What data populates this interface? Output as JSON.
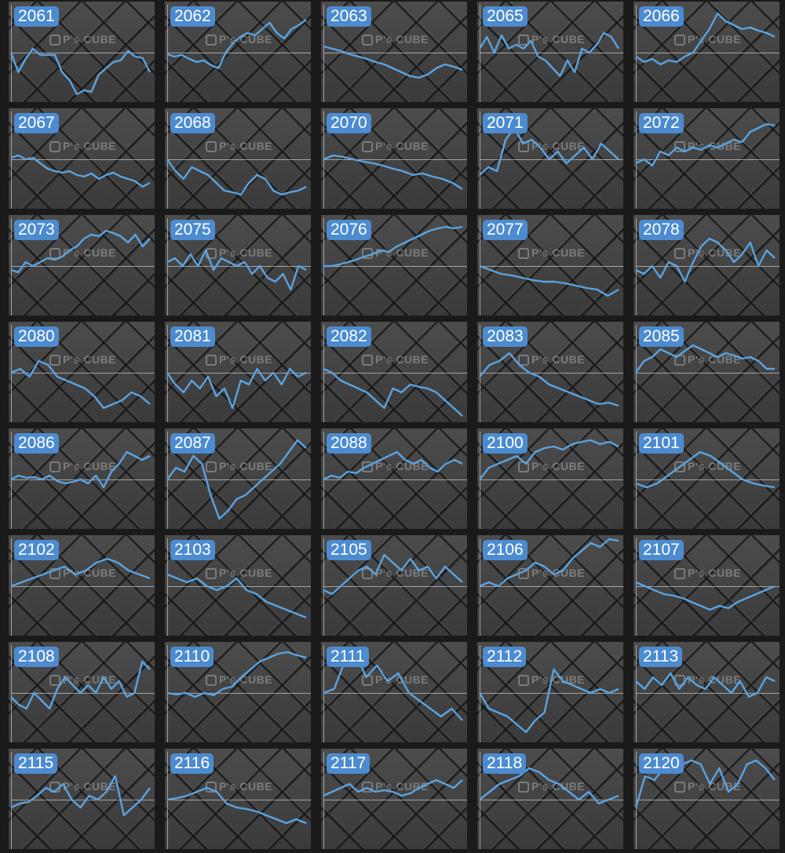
{
  "watermark": "P's CUBE",
  "colors": {
    "line": "#5ba3e0",
    "badge": "#4c8bd0",
    "background": "#1a1a1a"
  },
  "chart_data": [
    {
      "type": "line",
      "title": "2061",
      "values": [
        0,
        -25,
        -8,
        5,
        -3,
        -3,
        -3,
        -25,
        -35,
        -53,
        -48,
        -50,
        -28,
        -20,
        -12,
        -10,
        2,
        -5,
        -7,
        -25
      ]
    },
    {
      "type": "line",
      "title": "2062",
      "values": [
        -2,
        -5,
        -3,
        -8,
        -12,
        -10,
        -16,
        -20,
        0,
        12,
        20,
        25,
        22,
        30,
        38,
        25,
        18,
        30,
        35,
        42
      ]
    },
    {
      "type": "line",
      "title": "2063",
      "values": [
        8,
        5,
        2,
        -2,
        -5,
        -8,
        -12,
        -15,
        -20,
        -25,
        -30,
        -32,
        -28,
        -20,
        -15,
        -18,
        -22
      ]
    },
    {
      "type": "line",
      "title": "2065",
      "values": [
        5,
        20,
        0,
        22,
        5,
        10,
        5,
        15,
        -5,
        -10,
        -20,
        -30,
        -10,
        -25,
        5,
        0,
        10,
        25,
        20,
        5
      ]
    },
    {
      "type": "line",
      "title": "2066",
      "values": [
        -5,
        -12,
        -8,
        -15,
        -10,
        -12,
        -5,
        0,
        15,
        30,
        50,
        40,
        35,
        30,
        32,
        28,
        25,
        20
      ]
    },
    {
      "type": "line",
      "title": "2067",
      "values": [
        2,
        5,
        0,
        2,
        -5,
        -12,
        -15,
        -17,
        -15,
        -20,
        -22,
        -18,
        -25,
        -20,
        -17,
        -22,
        -25,
        -28,
        -35,
        -30
      ]
    },
    {
      "type": "line",
      "title": "2068",
      "values": [
        0,
        -15,
        -25,
        -10,
        -15,
        -20,
        -30,
        -40,
        -42,
        -45,
        -30,
        -20,
        -25,
        -40,
        -45,
        -42,
        -40,
        -35
      ]
    },
    {
      "type": "line",
      "title": "2070",
      "values": [
        0,
        5,
        3,
        0,
        -3,
        -5,
        -8,
        -12,
        -15,
        -20,
        -18,
        -22,
        -25,
        -30,
        -38
      ]
    },
    {
      "type": "line",
      "title": "2071",
      "values": [
        -20,
        -10,
        -15,
        25,
        40,
        20,
        25,
        15,
        0,
        10,
        -5,
        5,
        15,
        0,
        20,
        10,
        0
      ]
    },
    {
      "type": "line",
      "title": "2072",
      "values": [
        -5,
        0,
        -8,
        10,
        5,
        15,
        10,
        15,
        12,
        18,
        15,
        20,
        25,
        22,
        35,
        40,
        45,
        43
      ]
    },
    {
      "type": "line",
      "title": "2073",
      "values": [
        -5,
        -8,
        5,
        0,
        5,
        10,
        8,
        12,
        20,
        25,
        35,
        40,
        38,
        45,
        42,
        38,
        30,
        40,
        25,
        35
      ]
    },
    {
      "type": "line",
      "title": "2075",
      "values": [
        5,
        10,
        0,
        15,
        0,
        20,
        -5,
        10,
        5,
        0,
        5,
        -10,
        0,
        -15,
        -20,
        -10,
        -30,
        0,
        -5
      ]
    },
    {
      "type": "line",
      "title": "2076",
      "values": [
        0,
        0,
        2,
        5,
        8,
        12,
        15,
        20,
        18,
        25,
        30,
        35,
        40,
        45,
        48,
        50,
        48,
        50
      ]
    },
    {
      "type": "line",
      "title": "2077",
      "values": [
        0,
        -5,
        -10,
        -12,
        -15,
        -18,
        -20,
        -20,
        -22,
        -25,
        -28,
        -30,
        -38,
        -30
      ]
    },
    {
      "type": "line",
      "title": "2078",
      "values": [
        -5,
        -10,
        0,
        -15,
        5,
        0,
        -20,
        5,
        25,
        35,
        30,
        20,
        5,
        15,
        30,
        0,
        20,
        10
      ]
    },
    {
      "type": "line",
      "title": "2080",
      "values": [
        0,
        5,
        -5,
        15,
        10,
        -5,
        -10,
        -15,
        -20,
        -30,
        -45,
        -40,
        -35,
        -25,
        -30,
        -40
      ]
    },
    {
      "type": "line",
      "title": "2081",
      "values": [
        0,
        -15,
        -25,
        -10,
        -20,
        -5,
        -30,
        -20,
        -45,
        -10,
        -15,
        5,
        -10,
        0,
        -15,
        5,
        -5,
        0
      ]
    },
    {
      "type": "line",
      "title": "2082",
      "values": [
        5,
        0,
        -10,
        -15,
        -20,
        -25,
        -35,
        -45,
        -20,
        -25,
        -15,
        -18,
        -20,
        -25,
        -35,
        -45,
        -55
      ]
    },
    {
      "type": "line",
      "title": "2083",
      "values": [
        -5,
        10,
        15,
        25,
        10,
        0,
        -5,
        -15,
        -20,
        -25,
        -30,
        -35,
        -40,
        -38,
        -42
      ]
    },
    {
      "type": "line",
      "title": "2085",
      "values": [
        0,
        15,
        20,
        30,
        25,
        20,
        28,
        35,
        30,
        25,
        20,
        25,
        22,
        18,
        20,
        15,
        5,
        5
      ]
    },
    {
      "type": "line",
      "title": "2086",
      "values": [
        0,
        5,
        2,
        3,
        0,
        5,
        -2,
        -5,
        -3,
        0,
        -5,
        5,
        -10,
        10,
        20,
        35,
        30,
        25,
        30
      ]
    },
    {
      "type": "line",
      "title": "2087",
      "values": [
        0,
        15,
        10,
        30,
        20,
        -20,
        -50,
        -40,
        -25,
        -20,
        -10,
        0,
        10,
        20,
        35,
        50,
        40
      ]
    },
    {
      "type": "line",
      "title": "2088",
      "values": [
        0,
        5,
        2,
        10,
        8,
        15,
        20,
        25,
        30,
        35,
        25,
        20,
        25,
        15,
        10,
        20,
        25,
        20
      ]
    },
    {
      "type": "line",
      "title": "2100",
      "values": [
        0,
        15,
        20,
        25,
        30,
        20,
        35,
        40,
        42,
        38,
        45,
        48,
        50,
        45,
        48,
        42
      ]
    },
    {
      "type": "line",
      "title": "2101",
      "values": [
        -5,
        -10,
        -5,
        5,
        15,
        25,
        35,
        30,
        20,
        10,
        0,
        -5,
        -8,
        -10
      ]
    },
    {
      "type": "line",
      "title": "2102",
      "values": [
        0,
        5,
        10,
        15,
        20,
        25,
        15,
        20,
        30,
        35,
        30,
        20,
        15,
        10
      ]
    },
    {
      "type": "line",
      "title": "2103",
      "values": [
        15,
        10,
        5,
        10,
        0,
        -5,
        0,
        10,
        -5,
        -10,
        -20,
        -25,
        -30,
        -35,
        -40
      ]
    },
    {
      "type": "line",
      "title": "2105",
      "values": [
        -5,
        -10,
        0,
        10,
        20,
        25,
        15,
        40,
        30,
        20,
        35,
        20,
        25,
        10,
        25,
        15,
        5
      ]
    },
    {
      "type": "line",
      "title": "2106",
      "values": [
        0,
        5,
        0,
        10,
        15,
        20,
        30,
        25,
        15,
        20,
        35,
        45,
        55,
        50,
        60,
        58
      ]
    },
    {
      "type": "line",
      "title": "2107",
      "values": [
        5,
        0,
        -5,
        -10,
        -12,
        -15,
        -20,
        -25,
        -30,
        -25,
        -28,
        -20,
        -15,
        -10,
        -5,
        0
      ]
    },
    {
      "type": "line",
      "title": "2108",
      "values": [
        -5,
        -15,
        -20,
        0,
        -10,
        -20,
        5,
        20,
        10,
        0,
        10,
        0,
        20,
        5,
        15,
        -5,
        0,
        40,
        30
      ]
    },
    {
      "type": "line",
      "title": "2110",
      "values": [
        0,
        -2,
        0,
        -5,
        0,
        -3,
        5,
        8,
        20,
        30,
        40,
        45,
        50,
        52,
        48,
        45
      ]
    },
    {
      "type": "line",
      "title": "2111",
      "values": [
        0,
        5,
        40,
        50,
        20,
        35,
        15,
        25,
        0,
        -10,
        -20,
        -30,
        -20,
        -35
      ]
    },
    {
      "type": "line",
      "title": "2112",
      "values": [
        0,
        -20,
        -25,
        -30,
        -40,
        -50,
        -35,
        -25,
        30,
        15,
        10,
        5,
        0,
        5,
        0,
        5
      ]
    },
    {
      "type": "line",
      "title": "2113",
      "values": [
        15,
        5,
        20,
        10,
        25,
        5,
        20,
        10,
        5,
        20,
        10,
        0,
        15,
        -5,
        0,
        20,
        15
      ]
    },
    {
      "type": "line",
      "title": "2115",
      "values": [
        -10,
        -5,
        -3,
        5,
        15,
        10,
        20,
        0,
        -10,
        5,
        0,
        10,
        30,
        -20,
        -10,
        0,
        15
      ]
    },
    {
      "type": "line",
      "title": "2116",
      "values": [
        0,
        2,
        5,
        10,
        15,
        10,
        -5,
        -10,
        -12,
        -15,
        -20,
        -25,
        -30,
        -25,
        -30
      ]
    },
    {
      "type": "line",
      "title": "2117",
      "values": [
        5,
        10,
        15,
        20,
        10,
        15,
        10,
        12,
        10,
        5,
        8,
        15,
        20,
        25,
        20,
        15,
        25
      ]
    },
    {
      "type": "line",
      "title": "2118",
      "values": [
        0,
        10,
        20,
        25,
        30,
        40,
        35,
        25,
        20,
        10,
        0,
        10,
        -5,
        0,
        5
      ]
    },
    {
      "type": "line",
      "title": "2120",
      "values": [
        -10,
        30,
        25,
        40,
        35,
        45,
        50,
        45,
        20,
        40,
        10,
        20,
        45,
        50,
        40,
        25
      ]
    }
  ]
}
